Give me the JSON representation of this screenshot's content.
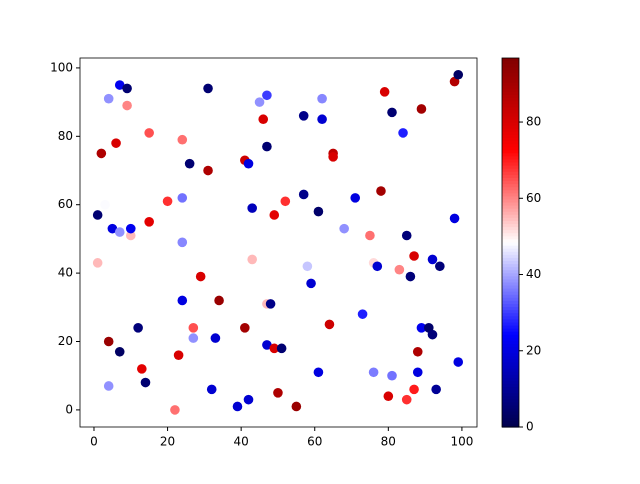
{
  "chart_data": {
    "type": "scatter",
    "colormap": "seismic",
    "x": [
      1,
      2,
      3,
      1,
      4,
      7,
      9,
      9,
      6,
      15,
      5,
      7,
      10,
      10,
      15,
      20,
      24,
      24,
      24,
      26,
      31,
      31,
      4,
      7,
      4,
      12,
      13,
      14,
      22,
      23,
      24,
      27,
      27,
      29,
      32,
      33,
      34,
      39,
      41,
      41,
      42,
      42,
      43,
      43,
      45,
      47,
      46,
      47,
      47,
      48,
      47,
      49,
      51,
      49,
      52,
      50,
      55,
      57,
      57,
      58,
      59,
      61,
      62,
      62,
      61,
      65,
      65,
      68,
      71,
      64,
      73,
      75,
      76,
      77,
      76,
      79,
      81,
      84,
      78,
      85,
      83,
      86,
      87,
      89,
      81,
      80,
      85,
      87,
      88,
      88,
      89,
      91,
      92,
      92,
      94,
      93,
      98,
      99,
      98,
      99
    ],
    "y": [
      57,
      75,
      60,
      43,
      91,
      95,
      94,
      89,
      78,
      81,
      53,
      52,
      51,
      53,
      55,
      61,
      62,
      49,
      79,
      72,
      94,
      70,
      20,
      17,
      7,
      24,
      12,
      8,
      0,
      16,
      32,
      24,
      21,
      39,
      6,
      21,
      32,
      1,
      24,
      73,
      72,
      3,
      59,
      44,
      90,
      92,
      85,
      77,
      31,
      31,
      19,
      18,
      18,
      57,
      61,
      5,
      1,
      86,
      63,
      42,
      37,
      58,
      85,
      91,
      11,
      75,
      74,
      53,
      62,
      25,
      28,
      51,
      43,
      42,
      11,
      93,
      87,
      81,
      64,
      51,
      41,
      39,
      45,
      88,
      10,
      4,
      3,
      6,
      17,
      11,
      24,
      24,
      44,
      22,
      42,
      6,
      96,
      98,
      56,
      14
    ],
    "c": [
      5,
      88,
      48,
      55,
      38,
      22,
      5,
      60,
      80,
      65,
      20,
      38,
      55,
      22,
      78,
      68,
      35,
      37,
      62,
      5,
      5,
      88,
      92,
      3,
      38,
      6,
      78,
      5,
      62,
      80,
      20,
      65,
      38,
      80,
      18,
      18,
      92,
      18,
      90,
      82,
      20,
      18,
      15,
      55,
      38,
      30,
      80,
      5,
      55,
      8,
      18,
      80,
      5,
      78,
      68,
      88,
      92,
      8,
      8,
      43,
      18,
      4,
      18,
      37,
      20,
      85,
      80,
      38,
      20,
      82,
      27,
      62,
      52,
      18,
      36,
      80,
      5,
      27,
      90,
      6,
      60,
      6,
      80,
      90,
      35,
      80,
      68,
      70,
      88,
      20,
      22,
      4,
      18,
      6,
      6,
      10,
      87,
      3,
      20,
      20
    ],
    "xlim": [
      -3.8,
      104.1
    ],
    "ylim": [
      -5,
      102.9
    ],
    "clim": [
      0,
      96.8
    ],
    "xticks": [
      0,
      20,
      40,
      60,
      80,
      100
    ],
    "yticks": [
      0,
      20,
      40,
      60,
      80,
      100
    ],
    "cticks": [
      0,
      20,
      40,
      60,
      80
    ]
  }
}
